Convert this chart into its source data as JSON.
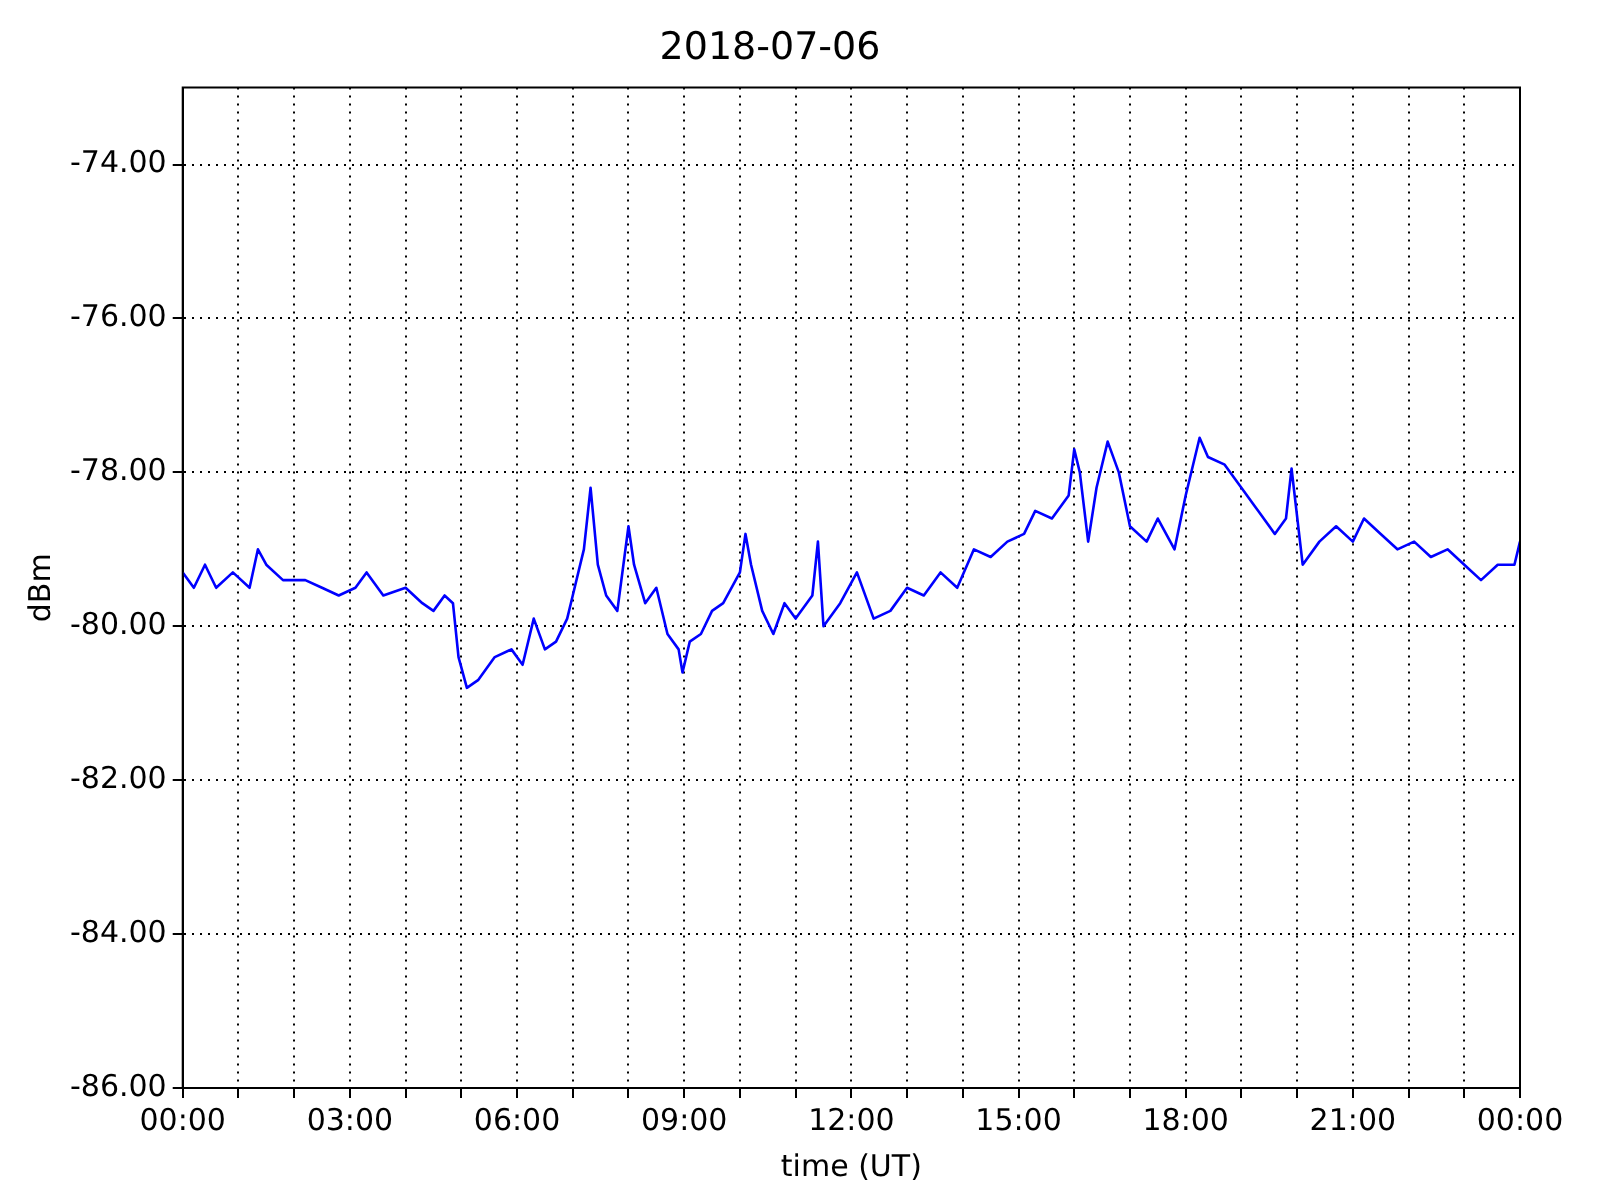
{
  "chart_data": {
    "type": "line",
    "title": "2018-07-06",
    "xlabel": "time (UT)",
    "ylabel": "dBm",
    "grid": true,
    "legend": false,
    "marker": "none",
    "line_style": "solid",
    "xlim": [
      0,
      24
    ],
    "xticks": [
      {
        "value": 0,
        "label": "00:00"
      },
      {
        "value": 1,
        "label": null
      },
      {
        "value": 2,
        "label": null
      },
      {
        "value": 3,
        "label": "03:00"
      },
      {
        "value": 4,
        "label": null
      },
      {
        "value": 5,
        "label": null
      },
      {
        "value": 6,
        "label": "06:00"
      },
      {
        "value": 7,
        "label": null
      },
      {
        "value": 8,
        "label": null
      },
      {
        "value": 9,
        "label": "09:00"
      },
      {
        "value": 10,
        "label": null
      },
      {
        "value": 11,
        "label": null
      },
      {
        "value": 12,
        "label": "12:00"
      },
      {
        "value": 13,
        "label": null
      },
      {
        "value": 14,
        "label": null
      },
      {
        "value": 15,
        "label": "15:00"
      },
      {
        "value": 16,
        "label": null
      },
      {
        "value": 17,
        "label": null
      },
      {
        "value": 18,
        "label": "18:00"
      },
      {
        "value": 19,
        "label": null
      },
      {
        "value": 20,
        "label": null
      },
      {
        "value": 21,
        "label": "21:00"
      },
      {
        "value": 22,
        "label": null
      },
      {
        "value": 23,
        "label": null
      },
      {
        "value": 24,
        "label": "00:00"
      }
    ],
    "ylim": [
      -86,
      -73
    ],
    "yticks": [
      {
        "value": -86,
        "label": "-86.00"
      },
      {
        "value": -84,
        "label": "-84.00"
      },
      {
        "value": -82,
        "label": "-82.00"
      },
      {
        "value": -80,
        "label": "-80.00"
      },
      {
        "value": -78,
        "label": "-78.00"
      },
      {
        "value": -76,
        "label": "-76.00"
      },
      {
        "value": -74,
        "label": "-74.00"
      }
    ],
    "series": [
      {
        "color": "#0000ff",
        "x": [
          0,
          0.2,
          0.4,
          0.6,
          0.9,
          1.2,
          1.35,
          1.5,
          1.8,
          2.2,
          2.5,
          2.8,
          3.1,
          3.3,
          3.6,
          4.0,
          4.3,
          4.5,
          4.7,
          4.85,
          4.95,
          5.1,
          5.3,
          5.6,
          5.9,
          6.1,
          6.3,
          6.5,
          6.7,
          6.9,
          7.0,
          7.1,
          7.2,
          7.32,
          7.45,
          7.6,
          7.8,
          8.0,
          8.1,
          8.3,
          8.5,
          8.7,
          8.9,
          8.97,
          9.1,
          9.3,
          9.5,
          9.7,
          10.0,
          10.1,
          10.2,
          10.4,
          10.6,
          10.8,
          11.0,
          11.3,
          11.4,
          11.5,
          11.8,
          12.1,
          12.4,
          12.7,
          13.0,
          13.3,
          13.6,
          13.9,
          14.2,
          14.5,
          14.8,
          15.1,
          15.3,
          15.6,
          15.9,
          16.0,
          16.1,
          16.25,
          16.4,
          16.6,
          16.8,
          17.0,
          17.3,
          17.5,
          17.8,
          18.0,
          18.25,
          18.4,
          18.7,
          19.0,
          19.3,
          19.6,
          19.8,
          19.9,
          20.1,
          20.4,
          20.7,
          21.0,
          21.2,
          21.5,
          21.8,
          22.1,
          22.4,
          22.7,
          23.0,
          23.3,
          23.6,
          23.9,
          24.0
        ],
        "values": [
          -79.3,
          -79.5,
          -79.2,
          -79.5,
          -79.3,
          -79.5,
          -79.0,
          -79.2,
          -79.4,
          -79.4,
          -79.5,
          -79.6,
          -79.5,
          -79.3,
          -79.6,
          -79.5,
          -79.7,
          -79.8,
          -79.6,
          -79.7,
          -80.4,
          -80.8,
          -80.7,
          -80.4,
          -80.3,
          -80.5,
          -79.9,
          -80.3,
          -80.2,
          -79.9,
          -79.6,
          -79.3,
          -79.0,
          -78.2,
          -79.2,
          -79.6,
          -79.8,
          -78.7,
          -79.2,
          -79.7,
          -79.5,
          -80.1,
          -80.3,
          -80.6,
          -80.2,
          -80.1,
          -79.8,
          -79.7,
          -79.3,
          -78.8,
          -79.2,
          -79.8,
          -80.1,
          -79.7,
          -79.9,
          -79.6,
          -78.9,
          -80.0,
          -79.7,
          -79.3,
          -79.9,
          -79.8,
          -79.5,
          -79.6,
          -79.3,
          -79.5,
          -79.0,
          -79.1,
          -78.9,
          -78.8,
          -78.5,
          -78.6,
          -78.3,
          -77.7,
          -78.0,
          -78.9,
          -78.2,
          -77.6,
          -78.0,
          -78.7,
          -78.9,
          -78.6,
          -79.0,
          -78.3,
          -77.55,
          -77.8,
          -77.9,
          -78.2,
          -78.5,
          -78.8,
          -78.6,
          -77.95,
          -79.2,
          -78.9,
          -78.7,
          -78.9,
          -78.6,
          -78.8,
          -79.0,
          -78.9,
          -79.1,
          -79.0,
          -79.2,
          -79.4,
          -79.2,
          -79.2,
          -78.9
        ]
      }
    ]
  }
}
